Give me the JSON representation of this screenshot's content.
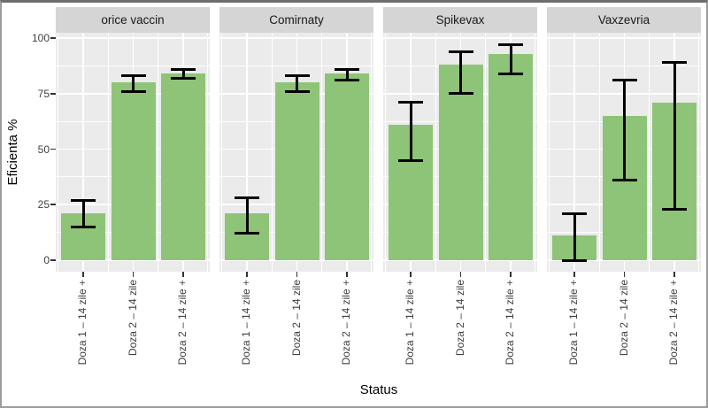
{
  "chart_data": {
    "type": "bar",
    "title": "",
    "xlabel": "Status",
    "ylabel": "Eficienta %",
    "y_ticks": [
      0,
      25,
      50,
      75,
      100
    ],
    "y_minor_ticks": [
      12.5,
      37.5,
      62.5,
      87.5
    ],
    "ylim": [
      -5,
      102
    ],
    "grid": true,
    "legend": "none",
    "categories": [
      "Doza 1 – 14 zile +",
      "Doza 2 – 14 zile",
      "Doza 2 – 14 zile +"
    ],
    "facets": [
      {
        "label": "orice vaccin",
        "values": [
          21,
          80,
          84
        ],
        "error_low": [
          15,
          76,
          82
        ],
        "error_high": [
          27,
          83,
          86
        ]
      },
      {
        "label": "Comirnaty",
        "values": [
          21,
          80,
          84
        ],
        "error_low": [
          12,
          76,
          81
        ],
        "error_high": [
          28,
          83,
          86
        ]
      },
      {
        "label": "Spikevax",
        "values": [
          61,
          88,
          93
        ],
        "error_low": [
          45,
          75,
          84
        ],
        "error_high": [
          71,
          94,
          97
        ]
      },
      {
        "label": "Vaxzevria",
        "values": [
          11,
          65,
          71
        ],
        "error_low": [
          0,
          36,
          23
        ],
        "error_high": [
          21,
          81,
          89
        ]
      }
    ],
    "colors": {
      "bar_fill": "#8ec477",
      "panel_bg": "#ebebeb",
      "strip_bg": "#d5d5d5",
      "grid": "#ffffff",
      "error_bar": "#000000",
      "tick_text": "#404040",
      "title_text": "#000000"
    }
  }
}
